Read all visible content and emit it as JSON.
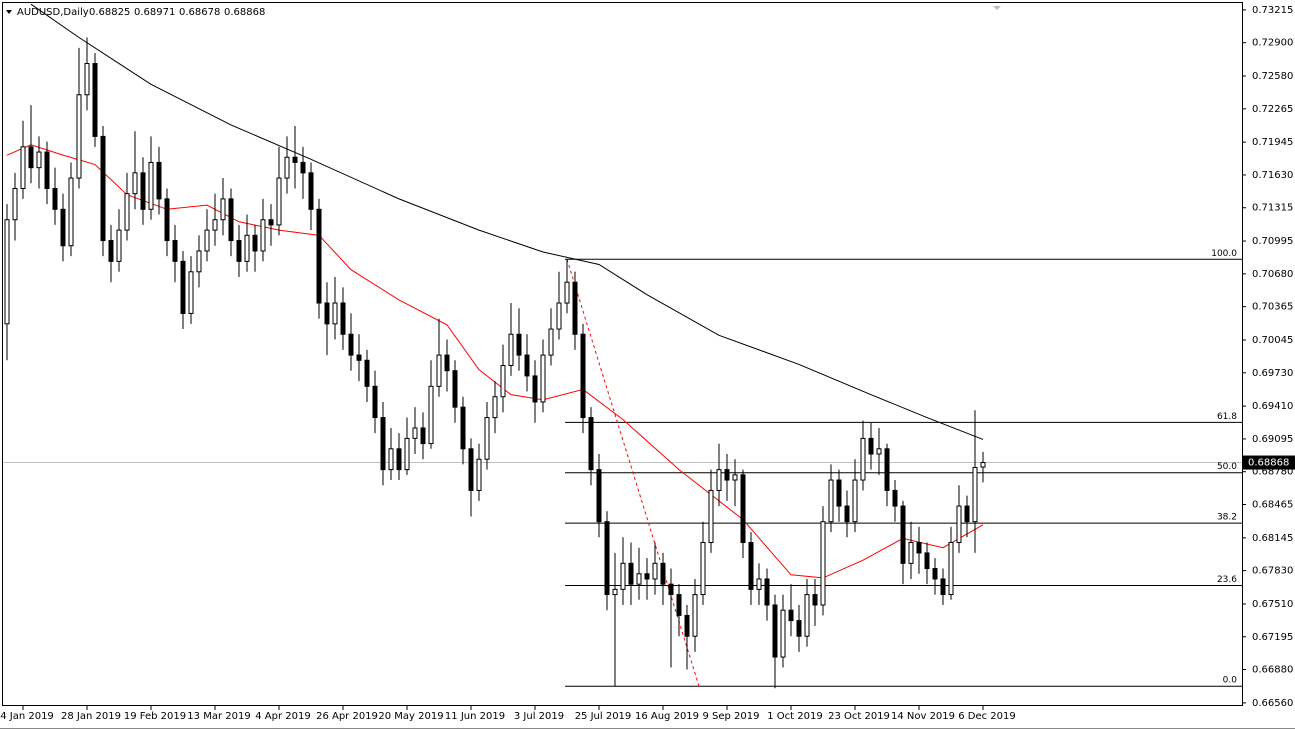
{
  "chart_data": {
    "type": "candlestick",
    "symbol": "AUDUSD,Daily",
    "ylim": [
      0.6653,
      0.7331
    ],
    "yticks": [
      0.73215,
      {
        "value": 0.729,
        "label": "0.72900"
      },
      {
        "value": 0.7258,
        "label": "0.72580"
      },
      0.72265,
      0.71945,
      {
        "value": 0.7163,
        "label": "0.71630"
      },
      0.71315,
      0.70995,
      {
        "value": 0.7068,
        "label": "0.70680"
      },
      0.70365,
      0.70045,
      {
        "value": 0.6973,
        "label": "0.69730"
      },
      {
        "value": 0.6941,
        "label": "0.69410"
      },
      0.69095,
      {
        "value": 0.6878,
        "label": "0.68780"
      },
      0.68465,
      0.68145,
      {
        "value": 0.6783,
        "label": "0.67830"
      },
      {
        "value": 0.6751,
        "label": "0.67510"
      },
      0.67195,
      {
        "value": 0.6688,
        "label": "0.66880"
      },
      {
        "value": 0.6656,
        "label": "0.66560"
      }
    ],
    "categories": [
      null,
      null,
      "4 Jan 2019",
      null,
      null,
      null,
      null,
      null,
      null,
      null,
      "28 Jan 2019",
      null,
      null,
      null,
      null,
      null,
      null,
      null,
      "19 Feb 2019",
      null,
      null,
      null,
      null,
      null,
      null,
      null,
      "13 Mar 2019",
      null,
      null,
      null,
      null,
      null,
      null,
      null,
      "4 Apr 2019",
      null,
      null,
      null,
      null,
      null,
      null,
      null,
      "26 Apr 2019",
      null,
      null,
      null,
      null,
      null,
      null,
      null,
      "20 May 2019",
      null,
      null,
      null,
      null,
      null,
      null,
      null,
      "11 Jun 2019",
      null,
      null,
      null,
      null,
      null,
      null,
      null,
      "3 Jul 2019",
      null,
      null,
      null,
      null,
      null,
      null,
      null,
      "25 Jul 2019",
      null,
      null,
      null,
      null,
      null,
      null,
      null,
      "16 Aug 2019",
      null,
      null,
      null,
      null,
      null,
      null,
      null,
      "9 Sep 2019",
      null,
      null,
      null,
      null,
      null,
      null,
      null,
      "1 Oct 2019",
      null,
      null,
      null,
      null,
      null,
      null,
      null,
      "23 Oct 2019",
      null,
      null,
      null,
      null,
      null,
      null,
      null,
      "14 Nov 2019",
      null,
      null,
      null,
      null,
      null,
      null,
      null,
      "6 Dec 2019"
    ],
    "ohlc": [
      [
        0.702,
        0.7135,
        0.6985,
        0.712
      ],
      [
        0.712,
        0.7165,
        0.71,
        0.715
      ],
      [
        0.715,
        0.7215,
        0.714,
        0.719
      ],
      [
        0.719,
        0.723,
        0.7155,
        0.717
      ],
      [
        0.717,
        0.72,
        0.715,
        0.7185
      ],
      [
        0.7185,
        0.7195,
        0.7135,
        0.715
      ],
      [
        0.715,
        0.717,
        0.7115,
        0.713
      ],
      [
        0.713,
        0.7145,
        0.708,
        0.7095
      ],
      [
        0.7095,
        0.7175,
        0.7085,
        0.716
      ],
      [
        0.716,
        0.7285,
        0.715,
        0.724
      ],
      [
        0.724,
        0.7295,
        0.7225,
        0.727
      ],
      [
        0.727,
        0.728,
        0.719,
        0.72
      ],
      [
        0.72,
        0.721,
        0.7085,
        0.71
      ],
      [
        0.71,
        0.7115,
        0.706,
        0.708
      ],
      [
        0.708,
        0.713,
        0.707,
        0.711
      ],
      [
        0.711,
        0.7165,
        0.71,
        0.7145
      ],
      [
        0.7145,
        0.7205,
        0.713,
        0.7165
      ],
      [
        0.7165,
        0.718,
        0.7115,
        0.713
      ],
      [
        0.713,
        0.72,
        0.712,
        0.7175
      ],
      [
        0.7175,
        0.719,
        0.7125,
        0.714
      ],
      [
        0.714,
        0.715,
        0.7085,
        0.71
      ],
      [
        0.71,
        0.7115,
        0.706,
        0.708
      ],
      [
        0.708,
        0.709,
        0.7015,
        0.703
      ],
      [
        0.703,
        0.7085,
        0.702,
        0.707
      ],
      [
        0.707,
        0.7105,
        0.7055,
        0.709
      ],
      [
        0.709,
        0.713,
        0.708,
        0.711
      ],
      [
        0.711,
        0.7145,
        0.7095,
        0.712
      ],
      [
        0.712,
        0.716,
        0.7105,
        0.714
      ],
      [
        0.714,
        0.715,
        0.7085,
        0.71
      ],
      [
        0.71,
        0.7115,
        0.7065,
        0.708
      ],
      [
        0.708,
        0.7125,
        0.707,
        0.7105
      ],
      [
        0.7105,
        0.7115,
        0.707,
        0.709
      ],
      [
        0.709,
        0.714,
        0.708,
        0.712
      ],
      [
        0.712,
        0.7135,
        0.7095,
        0.7115
      ],
      [
        0.7115,
        0.719,
        0.7105,
        0.716
      ],
      [
        0.716,
        0.72,
        0.7145,
        0.718
      ],
      [
        0.718,
        0.721,
        0.715,
        0.7175
      ],
      [
        0.7175,
        0.719,
        0.714,
        0.7165
      ],
      [
        0.7165,
        0.7175,
        0.711,
        0.713
      ],
      [
        0.713,
        0.714,
        0.7025,
        0.704
      ],
      [
        0.704,
        0.706,
        0.699,
        0.702
      ],
      [
        0.702,
        0.7065,
        0.7005,
        0.704
      ],
      [
        0.704,
        0.7055,
        0.6995,
        0.701
      ],
      [
        0.701,
        0.703,
        0.6975,
        0.699
      ],
      [
        0.699,
        0.701,
        0.6965,
        0.6985
      ],
      [
        0.6985,
        0.6995,
        0.6945,
        0.696
      ],
      [
        0.696,
        0.6975,
        0.6915,
        0.693
      ],
      [
        0.693,
        0.6945,
        0.6865,
        0.688
      ],
      [
        0.688,
        0.692,
        0.687,
        0.69
      ],
      [
        0.69,
        0.6915,
        0.687,
        0.688
      ],
      [
        0.688,
        0.693,
        0.6875,
        0.691
      ],
      [
        0.691,
        0.694,
        0.6895,
        0.692
      ],
      [
        0.692,
        0.6935,
        0.689,
        0.6905
      ],
      [
        0.6905,
        0.6985,
        0.69,
        0.696
      ],
      [
        0.696,
        0.7025,
        0.695,
        0.699
      ],
      [
        0.699,
        0.7005,
        0.6955,
        0.6975
      ],
      [
        0.6975,
        0.6985,
        0.6925,
        0.694
      ],
      [
        0.694,
        0.695,
        0.6885,
        0.69
      ],
      [
        0.69,
        0.691,
        0.6835,
        0.686
      ],
      [
        0.686,
        0.6905,
        0.685,
        0.689
      ],
      [
        0.689,
        0.6945,
        0.688,
        0.693
      ],
      [
        0.693,
        0.6965,
        0.6915,
        0.695
      ],
      [
        0.695,
        0.7,
        0.6935,
        0.698
      ],
      [
        0.698,
        0.704,
        0.697,
        0.701
      ],
      [
        0.701,
        0.7035,
        0.6975,
        0.699
      ],
      [
        0.699,
        0.701,
        0.6955,
        0.697
      ],
      [
        0.697,
        0.6985,
        0.6925,
        0.6945
      ],
      [
        0.6945,
        0.7005,
        0.6935,
        0.699
      ],
      [
        0.699,
        0.7035,
        0.698,
        0.7015
      ],
      [
        0.7015,
        0.707,
        0.7005,
        0.704
      ],
      [
        0.704,
        0.7082,
        0.703,
        0.706
      ],
      [
        0.706,
        0.707,
        0.6995,
        0.701
      ],
      [
        0.701,
        0.702,
        0.6915,
        0.693
      ],
      [
        0.693,
        0.694,
        0.6865,
        0.688
      ],
      [
        0.688,
        0.6895,
        0.6815,
        0.683
      ],
      [
        0.683,
        0.684,
        0.6745,
        0.676
      ],
      [
        0.676,
        0.68,
        0.6672,
        0.6765
      ],
      [
        0.6765,
        0.6815,
        0.675,
        0.679
      ],
      [
        0.679,
        0.681,
        0.675,
        0.677
      ],
      [
        0.677,
        0.6805,
        0.6755,
        0.678
      ],
      [
        0.678,
        0.6795,
        0.6755,
        0.6775
      ],
      [
        0.6775,
        0.681,
        0.676,
        0.679
      ],
      [
        0.679,
        0.68,
        0.675,
        0.677
      ],
      [
        0.677,
        0.6785,
        0.669,
        0.676
      ],
      [
        0.676,
        0.677,
        0.672,
        0.674
      ],
      [
        0.674,
        0.675,
        0.6688,
        0.672
      ],
      [
        0.672,
        0.6775,
        0.6705,
        0.676
      ],
      [
        0.676,
        0.683,
        0.675,
        0.681
      ],
      [
        0.681,
        0.688,
        0.68,
        0.686
      ],
      [
        0.686,
        0.6905,
        0.6845,
        0.688
      ],
      [
        0.688,
        0.6895,
        0.685,
        0.687
      ],
      [
        0.687,
        0.689,
        0.6845,
        0.6875
      ],
      [
        0.6875,
        0.688,
        0.6795,
        0.681
      ],
      [
        0.681,
        0.682,
        0.675,
        0.6765
      ],
      [
        0.6765,
        0.679,
        0.675,
        0.6775
      ],
      [
        0.6775,
        0.6785,
        0.6735,
        0.675
      ],
      [
        0.675,
        0.676,
        0.667,
        0.67
      ],
      [
        0.67,
        0.676,
        0.669,
        0.6745
      ],
      [
        0.6745,
        0.677,
        0.672,
        0.6735
      ],
      [
        0.6735,
        0.675,
        0.6705,
        0.672
      ],
      [
        0.672,
        0.6775,
        0.671,
        0.676
      ],
      [
        0.676,
        0.6775,
        0.673,
        0.675
      ],
      [
        0.675,
        0.6845,
        0.674,
        0.683
      ],
      [
        0.683,
        0.6885,
        0.682,
        0.687
      ],
      [
        0.687,
        0.688,
        0.683,
        0.6845
      ],
      [
        0.6845,
        0.686,
        0.6815,
        0.683
      ],
      [
        0.683,
        0.689,
        0.682,
        0.687
      ],
      [
        0.687,
        0.6927,
        0.686,
        0.691
      ],
      [
        0.691,
        0.6925,
        0.688,
        0.6895
      ],
      [
        0.6895,
        0.692,
        0.6875,
        0.69
      ],
      [
        0.69,
        0.6905,
        0.6845,
        0.686
      ],
      [
        0.686,
        0.687,
        0.683,
        0.6845
      ],
      [
        0.6845,
        0.685,
        0.677,
        0.679
      ],
      [
        0.679,
        0.683,
        0.6775,
        0.681
      ],
      [
        0.681,
        0.6825,
        0.678,
        0.68
      ],
      [
        0.68,
        0.681,
        0.677,
        0.6785
      ],
      [
        0.6785,
        0.6795,
        0.676,
        0.6775
      ],
      [
        0.6775,
        0.6785,
        0.675,
        0.676
      ],
      [
        0.676,
        0.6825,
        0.6755,
        0.681
      ],
      [
        0.681,
        0.6865,
        0.68,
        0.6845
      ],
      [
        0.6845,
        0.6855,
        0.6815,
        0.683
      ],
      [
        0.683,
        0.6937,
        0.68,
        0.6882
      ],
      [
        0.68825,
        0.68971,
        0.68678,
        0.68868
      ]
    ],
    "ma200": {
      "color": "#000000",
      "x": [
        3,
        9,
        18,
        28,
        38,
        49,
        59,
        67,
        74,
        80,
        89,
        99,
        108,
        115,
        122
      ],
      "values": [
        0.7327,
        0.7295,
        0.725,
        0.7211,
        0.7178,
        0.714,
        0.711,
        0.7089,
        0.7077,
        0.7048,
        0.7009,
        0.6981,
        0.6952,
        0.693,
        0.6909
      ]
    },
    "ma50": {
      "color": "#ff0000",
      "x": [
        0,
        3,
        7,
        11,
        15,
        20,
        25,
        29,
        34,
        39,
        43,
        49,
        55,
        59,
        63,
        67,
        72,
        77,
        84,
        92,
        98,
        102,
        107,
        112,
        117,
        122
      ],
      "values": [
        0.7182,
        0.7192,
        0.7182,
        0.7173,
        0.7144,
        0.713,
        0.7134,
        0.7118,
        0.711,
        0.7105,
        0.7072,
        0.7043,
        0.7019,
        0.6976,
        0.6952,
        0.6947,
        0.6957,
        0.6928,
        0.688,
        0.6832,
        0.6779,
        0.6776,
        0.6793,
        0.6814,
        0.6805,
        0.6827
      ]
    },
    "fib": {
      "high": 0.7082,
      "low": 0.6672,
      "start": 70,
      "end": 86,
      "color": "#ff0000",
      "levels": [
        {
          "value": 100,
          "label": "100.0"
        },
        61.8,
        {
          "value": 50,
          "label": "50.0"
        },
        38.2,
        23.6,
        {
          "value": 0,
          "label": "0.0"
        }
      ]
    }
  }
}
